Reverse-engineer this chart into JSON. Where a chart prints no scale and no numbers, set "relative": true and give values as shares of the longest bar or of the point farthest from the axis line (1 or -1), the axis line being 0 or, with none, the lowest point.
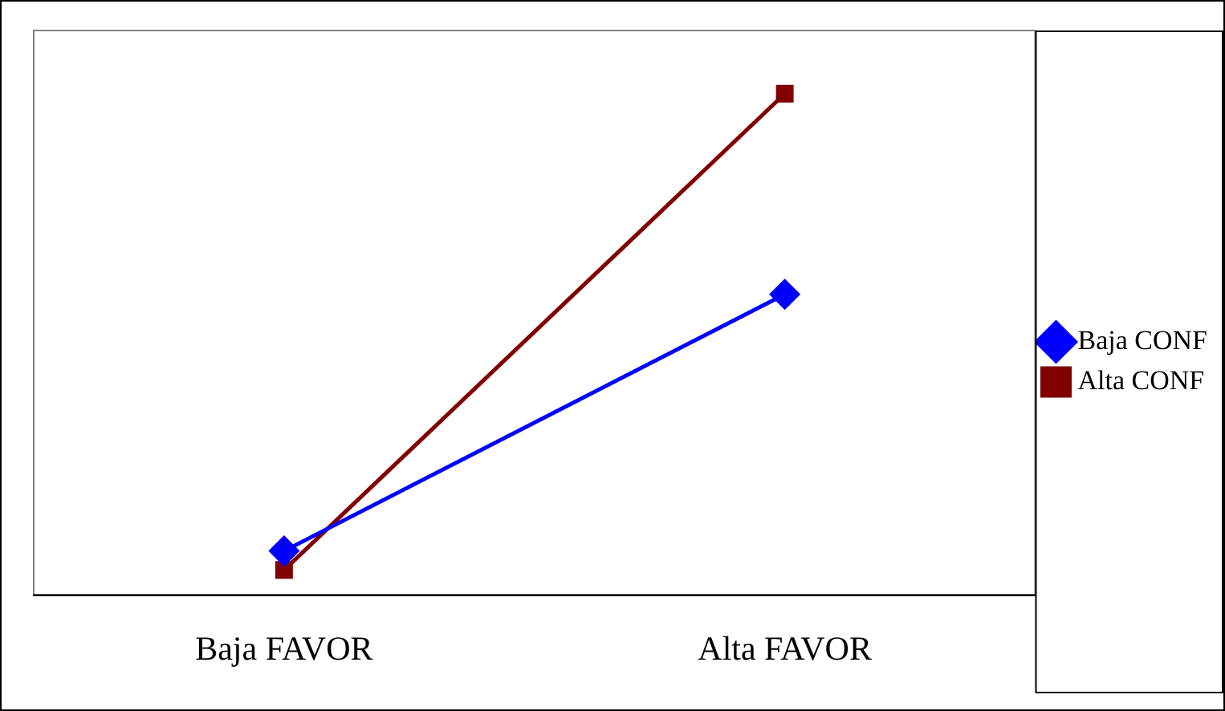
{
  "chart_data": {
    "type": "line",
    "relative": true,
    "categories": [
      "Baja FAVOR",
      "Alta FAVOR"
    ],
    "series": [
      {
        "name": "Baja CONF",
        "color": "#0000ff",
        "marker": "diamond",
        "values": [
          0.088,
          0.6
        ]
      },
      {
        "name": "Alta CONF",
        "color": "#800000",
        "marker": "square",
        "values": [
          0.05,
          1
        ]
      }
    ],
    "legend": "right",
    "grid": false
  }
}
